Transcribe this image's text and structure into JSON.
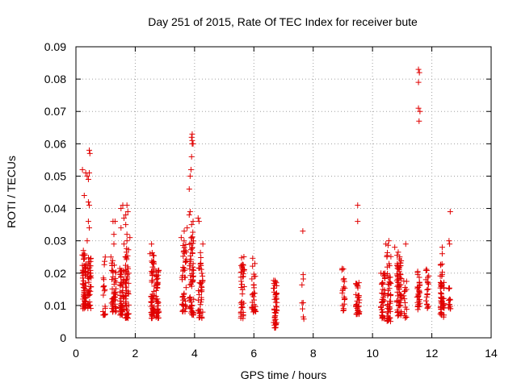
{
  "chart_data": {
    "type": "scatter",
    "title": "Day 251 of 2015, Rate Of TEC Index for receiver bute",
    "xlabel": "GPS time / hours",
    "ylabel": "ROTI / TECUs",
    "xlim": [
      0,
      14
    ],
    "ylim": [
      0,
      0.09
    ],
    "xticks": [
      0,
      2,
      4,
      6,
      8,
      10,
      12,
      14
    ],
    "yticks": [
      0,
      0.01,
      0.02,
      0.03,
      0.04,
      0.05,
      0.06,
      0.07,
      0.08,
      0.09
    ],
    "xtick_labels": [
      "0",
      "2",
      "4",
      "6",
      "8",
      "10",
      "12",
      "14"
    ],
    "ytick_labels": [
      "0",
      "0.01",
      "0.02",
      "0.03",
      "0.04",
      "0.05",
      "0.06",
      "0.07",
      "0.08",
      "0.09"
    ],
    "grid": true,
    "marker": "+",
    "color": "#e00000",
    "clusters": [
      {
        "x": 0.28,
        "spread": 0.07,
        "n": 60,
        "lo": 0.009,
        "hi": 0.026
      },
      {
        "x": 0.45,
        "spread": 0.06,
        "n": 45,
        "lo": 0.009,
        "hi": 0.025
      },
      {
        "x": 0.95,
        "spread": 0.04,
        "n": 20,
        "lo": 0.007,
        "hi": 0.025
      },
      {
        "x": 1.28,
        "spread": 0.08,
        "n": 50,
        "lo": 0.008,
        "hi": 0.024
      },
      {
        "x": 1.55,
        "spread": 0.07,
        "n": 50,
        "lo": 0.007,
        "hi": 0.022
      },
      {
        "x": 1.72,
        "spread": 0.06,
        "n": 55,
        "lo": 0.006,
        "hi": 0.028
      },
      {
        "x": 2.58,
        "spread": 0.06,
        "n": 55,
        "lo": 0.006,
        "hi": 0.027
      },
      {
        "x": 2.75,
        "spread": 0.05,
        "n": 45,
        "lo": 0.006,
        "hi": 0.021
      },
      {
        "x": 3.65,
        "spread": 0.08,
        "n": 45,
        "lo": 0.008,
        "hi": 0.03
      },
      {
        "x": 3.9,
        "spread": 0.07,
        "n": 55,
        "lo": 0.007,
        "hi": 0.033
      },
      {
        "x": 4.2,
        "spread": 0.08,
        "n": 40,
        "lo": 0.006,
        "hi": 0.027
      },
      {
        "x": 5.62,
        "spread": 0.06,
        "n": 40,
        "lo": 0.006,
        "hi": 0.026
      },
      {
        "x": 6.0,
        "spread": 0.07,
        "n": 30,
        "lo": 0.008,
        "hi": 0.025
      },
      {
        "x": 6.72,
        "spread": 0.06,
        "n": 45,
        "lo": 0.003,
        "hi": 0.018
      },
      {
        "x": 7.65,
        "spread": 0.04,
        "n": 8,
        "lo": 0.005,
        "hi": 0.02
      },
      {
        "x": 9.02,
        "spread": 0.05,
        "n": 20,
        "lo": 0.008,
        "hi": 0.023
      },
      {
        "x": 9.5,
        "spread": 0.06,
        "n": 35,
        "lo": 0.007,
        "hi": 0.018
      },
      {
        "x": 10.35,
        "spread": 0.07,
        "n": 40,
        "lo": 0.006,
        "hi": 0.022
      },
      {
        "x": 10.55,
        "spread": 0.07,
        "n": 50,
        "lo": 0.005,
        "hi": 0.03
      },
      {
        "x": 10.9,
        "spread": 0.08,
        "n": 70,
        "lo": 0.006,
        "hi": 0.027
      },
      {
        "x": 11.1,
        "spread": 0.05,
        "n": 15,
        "lo": 0.006,
        "hi": 0.02
      },
      {
        "x": 11.55,
        "spread": 0.05,
        "n": 30,
        "lo": 0.008,
        "hi": 0.021
      },
      {
        "x": 11.85,
        "spread": 0.05,
        "n": 20,
        "lo": 0.009,
        "hi": 0.022
      },
      {
        "x": 12.35,
        "spread": 0.07,
        "n": 50,
        "lo": 0.006,
        "hi": 0.023
      },
      {
        "x": 12.6,
        "spread": 0.04,
        "n": 12,
        "lo": 0.009,
        "hi": 0.02
      }
    ],
    "outliers": [
      [
        0.22,
        0.052
      ],
      [
        0.28,
        0.044
      ],
      [
        0.33,
        0.051
      ],
      [
        0.38,
        0.05
      ],
      [
        0.42,
        0.049
      ],
      [
        0.45,
        0.058
      ],
      [
        0.47,
        0.057
      ],
      [
        0.45,
        0.051
      ],
      [
        0.42,
        0.042
      ],
      [
        0.45,
        0.041
      ],
      [
        0.42,
        0.036
      ],
      [
        0.45,
        0.034
      ],
      [
        0.25,
        0.027
      ],
      [
        0.38,
        0.03
      ],
      [
        1.25,
        0.036
      ],
      [
        1.32,
        0.036
      ],
      [
        1.28,
        0.032
      ],
      [
        1.28,
        0.029
      ],
      [
        1.18,
        0.025
      ],
      [
        1.52,
        0.04
      ],
      [
        1.58,
        0.041
      ],
      [
        1.62,
        0.037
      ],
      [
        1.68,
        0.038
      ],
      [
        1.72,
        0.041
      ],
      [
        1.75,
        0.039
      ],
      [
        1.68,
        0.035
      ],
      [
        1.72,
        0.032
      ],
      [
        1.52,
        0.034
      ],
      [
        1.62,
        0.029
      ],
      [
        1.72,
        0.03
      ],
      [
        1.82,
        0.031
      ],
      [
        2.55,
        0.029
      ],
      [
        2.5,
        0.026
      ],
      [
        3.55,
        0.031
      ],
      [
        3.65,
        0.033
      ],
      [
        3.75,
        0.034
      ],
      [
        3.82,
        0.038
      ],
      [
        3.85,
        0.039
      ],
      [
        3.9,
        0.035
      ],
      [
        3.95,
        0.036
      ],
      [
        4.12,
        0.037
      ],
      [
        4.15,
        0.036
      ],
      [
        4.28,
        0.029
      ],
      [
        3.82,
        0.046
      ],
      [
        3.85,
        0.05
      ],
      [
        3.88,
        0.052
      ],
      [
        3.9,
        0.056
      ],
      [
        3.92,
        0.06
      ],
      [
        3.95,
        0.06
      ],
      [
        3.92,
        0.061
      ],
      [
        3.9,
        0.062
      ],
      [
        3.92,
        0.063
      ],
      [
        7.65,
        0.033
      ],
      [
        9.5,
        0.041
      ],
      [
        9.5,
        0.036
      ],
      [
        10.45,
        0.029
      ],
      [
        10.55,
        0.03
      ],
      [
        10.75,
        0.028
      ],
      [
        11.12,
        0.029
      ],
      [
        11.55,
        0.083
      ],
      [
        11.58,
        0.082
      ],
      [
        11.55,
        0.079
      ],
      [
        11.55,
        0.071
      ],
      [
        11.6,
        0.07
      ],
      [
        11.57,
        0.067
      ],
      [
        12.35,
        0.028
      ],
      [
        12.35,
        0.026
      ],
      [
        12.58,
        0.03
      ],
      [
        12.6,
        0.029
      ],
      [
        12.62,
        0.039
      ]
    ]
  }
}
